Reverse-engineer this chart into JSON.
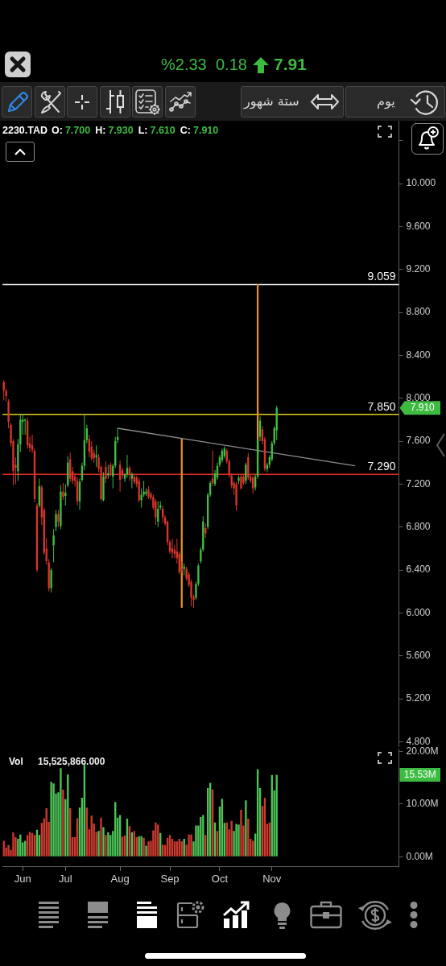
{
  "chart_data": [
    {
      "type": "candlestick",
      "title": "2230.TAD",
      "subtitle": "O: 7.700 H: 7.930 L: 7.610 C: 7.910",
      "categories": [
        null,
        null,
        null,
        null,
        null,
        null,
        null,
        null,
        null,
        null,
        null,
        null,
        null,
        null,
        null,
        null,
        null,
        null,
        null,
        null,
        null,
        null,
        null,
        null,
        null,
        null,
        null,
        null,
        null,
        null,
        null,
        null,
        null,
        null,
        null,
        null,
        null,
        null,
        null,
        null,
        null,
        null,
        null,
        null,
        null,
        null,
        null,
        null,
        null,
        null,
        null,
        null,
        null,
        null,
        null,
        null,
        null,
        null,
        null,
        null,
        null,
        null,
        null,
        null,
        null,
        null,
        null,
        null,
        null,
        null,
        null,
        null,
        null,
        null,
        null,
        null,
        null,
        null,
        null,
        null,
        null,
        null,
        null,
        null,
        null,
        null,
        null,
        null,
        null,
        null,
        null,
        null,
        null,
        null,
        null,
        null,
        null,
        null,
        null,
        null,
        null,
        null,
        null,
        null,
        null,
        null,
        null,
        null,
        null,
        null,
        null,
        null,
        null,
        null,
        null,
        null,
        null,
        null,
        null,
        null,
        null,
        null,
        null,
        null,
        null,
        null,
        null,
        null,
        null,
        null,
        null,
        null,
        null,
        null,
        null,
        null,
        null,
        null,
        null,
        null,
        null,
        null,
        null,
        null,
        null,
        null,
        null,
        null,
        null,
        null,
        null,
        null,
        null,
        null,
        null,
        null,
        null,
        null,
        null,
        null,
        null,
        null,
        null,
        null,
        null,
        null,
        null
      ],
      "ohlc": [
        [
          8.15,
          8.17,
          7.98,
          8.07
        ],
        [
          8.07,
          8.09,
          7.97,
          8.02
        ],
        [
          7.97,
          7.99,
          7.72,
          7.78
        ],
        [
          7.75,
          7.77,
          7.55,
          7.58
        ],
        [
          7.6,
          7.62,
          7.19,
          7.32
        ],
        [
          7.38,
          7.45,
          7.2,
          7.35
        ],
        [
          7.32,
          7.62,
          7.23,
          7.57
        ],
        [
          7.57,
          7.85,
          7.5,
          7.8
        ],
        [
          7.78,
          7.85,
          7.66,
          7.8
        ],
        [
          7.79,
          7.81,
          7.66,
          7.8
        ],
        [
          7.79,
          7.82,
          7.53,
          7.56
        ],
        [
          7.58,
          7.64,
          7.5,
          7.54
        ],
        [
          7.56,
          7.66,
          7.49,
          7.52
        ],
        [
          7.51,
          7.53,
          7.03,
          7.06
        ],
        [
          7.0,
          7.02,
          6.38,
          6.4
        ],
        [
          7.0,
          7.25,
          6.98,
          7.18
        ],
        [
          7.17,
          7.19,
          6.82,
          6.89
        ],
        [
          6.96,
          6.98,
          6.54,
          6.56
        ],
        [
          6.6,
          6.7,
          6.45,
          6.48
        ],
        [
          6.47,
          6.5,
          6.2,
          6.23
        ],
        [
          6.23,
          6.42,
          6.19,
          6.4
        ],
        [
          6.63,
          6.78,
          6.47,
          6.72
        ],
        [
          6.8,
          6.96,
          6.76,
          6.92
        ],
        [
          6.92,
          6.96,
          6.8,
          6.85
        ],
        [
          6.81,
          7.19,
          6.78,
          7.13
        ],
        [
          7.13,
          7.21,
          7.05,
          7.08
        ],
        [
          7.09,
          7.2,
          7.0,
          7.12
        ],
        [
          7.19,
          7.46,
          7.17,
          7.4
        ],
        [
          7.43,
          7.49,
          7.22,
          7.25
        ],
        [
          7.32,
          7.36,
          7.2,
          7.23
        ],
        [
          7.27,
          7.3,
          7.18,
          7.23
        ],
        [
          7.23,
          7.26,
          7.0,
          7.04
        ],
        [
          7.04,
          7.25,
          6.96,
          7.22
        ],
        [
          7.24,
          7.4,
          7.22,
          7.37
        ],
        [
          7.37,
          7.85,
          7.33,
          7.61
        ],
        [
          7.61,
          7.75,
          7.58,
          7.72
        ],
        [
          7.62,
          7.66,
          7.45,
          7.5
        ],
        [
          7.55,
          7.6,
          7.42,
          7.44
        ],
        [
          7.49,
          7.52,
          7.4,
          7.44
        ],
        [
          7.45,
          7.56,
          7.36,
          7.47
        ],
        [
          7.45,
          7.48,
          7.31,
          7.34
        ],
        [
          7.36,
          7.38,
          7.04,
          7.06
        ],
        [
          7.05,
          7.31,
          7.04,
          7.27
        ],
        [
          7.36,
          7.41,
          7.21,
          7.25
        ],
        [
          7.28,
          7.38,
          7.25,
          7.3
        ],
        [
          7.38,
          7.4,
          7.27,
          7.3
        ],
        [
          7.27,
          7.39,
          7.16,
          7.37
        ],
        [
          7.37,
          7.64,
          7.35,
          7.6
        ],
        [
          7.61,
          7.72,
          7.58,
          7.64
        ],
        [
          7.38,
          7.42,
          7.13,
          7.24
        ],
        [
          7.33,
          7.35,
          7.25,
          7.28
        ],
        [
          7.25,
          7.3,
          7.22,
          7.29
        ],
        [
          7.29,
          7.47,
          7.26,
          7.35
        ],
        [
          7.35,
          7.37,
          7.23,
          7.29
        ],
        [
          7.25,
          7.31,
          7.16,
          7.29
        ],
        [
          7.27,
          7.29,
          7.2,
          7.22
        ],
        [
          7.26,
          7.28,
          7.17,
          7.2
        ],
        [
          7.23,
          7.26,
          7.03,
          7.05
        ],
        [
          7.05,
          7.16,
          6.98,
          7.1
        ],
        [
          7.1,
          7.23,
          7.08,
          7.13
        ],
        [
          7.11,
          7.16,
          7.09,
          7.13
        ],
        [
          7.15,
          7.18,
          7.06,
          7.08
        ],
        [
          7.11,
          7.13,
          7.05,
          7.07
        ],
        [
          7.08,
          7.1,
          6.96,
          6.98
        ],
        [
          7.04,
          7.06,
          6.82,
          6.89
        ],
        [
          6.85,
          7.04,
          6.8,
          6.97
        ],
        [
          6.98,
          7.04,
          6.96,
          7.0
        ],
        [
          6.97,
          7.0,
          6.84,
          6.89
        ],
        [
          6.89,
          6.91,
          6.81,
          6.83
        ],
        [
          6.85,
          6.86,
          6.63,
          6.66
        ],
        [
          6.66,
          6.68,
          6.55,
          6.57
        ],
        [
          6.6,
          6.69,
          6.51,
          6.56
        ],
        [
          6.59,
          6.63,
          6.51,
          6.55
        ],
        [
          6.57,
          6.69,
          6.46,
          6.51
        ],
        [
          6.55,
          6.57,
          6.36,
          6.38
        ],
        [
          6.42,
          6.48,
          6.37,
          6.4
        ],
        [
          6.41,
          6.46,
          6.35,
          6.43
        ],
        [
          6.41,
          6.43,
          6.3,
          6.32
        ],
        [
          6.36,
          6.38,
          6.24,
          6.26
        ],
        [
          6.29,
          6.31,
          6.06,
          6.14
        ],
        [
          6.15,
          6.17,
          6.05,
          6.12
        ],
        [
          6.14,
          6.29,
          6.12,
          6.27
        ],
        [
          6.27,
          6.46,
          6.25,
          6.44
        ],
        [
          6.48,
          6.61,
          6.46,
          6.59
        ],
        [
          6.59,
          6.9,
          6.57,
          6.85
        ],
        [
          6.79,
          6.83,
          6.7,
          6.74
        ],
        [
          6.8,
          7.12,
          6.78,
          7.1
        ],
        [
          7.1,
          7.23,
          7.08,
          7.21
        ],
        [
          7.25,
          7.51,
          7.18,
          7.21
        ],
        [
          7.2,
          7.33,
          7.18,
          7.3
        ],
        [
          7.26,
          7.4,
          7.24,
          7.37
        ],
        [
          7.38,
          7.47,
          7.36,
          7.45
        ],
        [
          7.42,
          7.53,
          7.4,
          7.51
        ],
        [
          7.46,
          7.55,
          7.44,
          7.53
        ],
        [
          7.51,
          7.53,
          7.39,
          7.41
        ],
        [
          7.41,
          7.43,
          7.26,
          7.28
        ],
        [
          7.28,
          7.3,
          7.16,
          7.19
        ],
        [
          7.21,
          7.23,
          7.1,
          7.16
        ],
        [
          7.2,
          7.22,
          6.95,
          7.0
        ],
        [
          7.23,
          7.28,
          7.2,
          7.26
        ],
        [
          7.27,
          7.29,
          7.15,
          7.16
        ],
        [
          7.27,
          7.29,
          7.19,
          7.21
        ],
        [
          7.23,
          7.4,
          7.2,
          7.38
        ],
        [
          7.45,
          7.49,
          7.24,
          7.26
        ],
        [
          7.27,
          7.29,
          7.21,
          7.23
        ],
        [
          7.26,
          7.28,
          7.11,
          7.16
        ],
        [
          7.17,
          7.29,
          7.14,
          7.27
        ],
        [
          7.27,
          7.62,
          7.25,
          7.6
        ],
        [
          7.64,
          7.83,
          7.6,
          7.79
        ],
        [
          7.71,
          7.74,
          7.57,
          7.6
        ],
        [
          7.62,
          7.64,
          7.32,
          7.34
        ],
        [
          7.34,
          7.4,
          7.31,
          7.38
        ],
        [
          7.38,
          7.47,
          7.35,
          7.45
        ],
        [
          7.43,
          7.6,
          7.41,
          7.58
        ],
        [
          7.58,
          7.74,
          7.56,
          7.72
        ],
        [
          7.7,
          7.93,
          7.61,
          7.91
        ],
        null,
        null,
        null,
        null,
        null,
        null,
        null,
        null,
        null,
        null,
        null,
        null,
        null,
        null,
        null,
        null,
        null,
        null,
        null,
        null,
        null,
        null,
        null,
        null,
        null,
        null,
        null,
        null,
        null,
        null,
        null,
        null,
        null,
        null,
        null,
        null,
        null,
        null,
        null,
        null,
        null,
        null,
        null,
        null,
        null,
        null,
        null,
        null,
        null,
        null,
        null
      ],
      "colors": [
        "#d9352c",
        "#d9352c",
        "#d9352c",
        "#d9352c",
        "#d9352c",
        "#d9352c",
        "#3fbf45",
        "#3fbf45",
        "#3fbf45",
        "#3fbf45",
        "#d9352c",
        "#d9352c",
        "#d9352c",
        "#d9352c",
        "#d9352c",
        "#3fbf45",
        "#d9352c",
        "#d9352c",
        "#d9352c",
        "#d9352c",
        "#3fbf45",
        "#3fbf45",
        "#3fbf45",
        "#d9352c",
        "#3fbf45",
        "#d9352c",
        "#3fbf45",
        "#3fbf45",
        "#d9352c",
        "#d9352c",
        "#d9352c",
        "#d9352c",
        "#3fbf45",
        "#3fbf45",
        "#3fbf45",
        "#3fbf45",
        "#d9352c",
        "#d9352c",
        "#d9352c",
        "#3fbf45",
        "#d9352c",
        "#d9352c",
        "#3fbf45",
        "#d9352c",
        "#3fbf45",
        "#d9352c",
        "#3fbf45",
        "#3fbf45",
        "#3fbf45",
        "#d9352c",
        "#d9352c",
        "#3fbf45",
        "#3fbf45",
        "#d9352c",
        "#3fbf45",
        "#d9352c",
        "#d9352c",
        "#d9352c",
        "#3fbf45",
        "#3fbf45",
        "#3fbf45",
        "#d9352c",
        "#d9352c",
        "#d9352c",
        "#d9352c",
        "#3fbf45",
        "#3fbf45",
        "#d9352c",
        "#d9352c",
        "#d9352c",
        "#d9352c",
        "#d9352c",
        "#d9352c",
        "#d9352c",
        "#d9352c",
        "#d9352c",
        "#3fbf45",
        "#d9352c",
        "#d9352c",
        "#d9352c",
        "#d9352c",
        "#3fbf45",
        "#3fbf45",
        "#3fbf45",
        "#3fbf45",
        "#d9352c",
        "#3fbf45",
        "#3fbf45",
        "#d9352c",
        "#3fbf45",
        "#3fbf45",
        "#3fbf45",
        "#3fbf45",
        "#3fbf45",
        "#d9352c",
        "#d9352c",
        "#d9352c",
        "#d9352c",
        "#d9352c",
        "#3fbf45",
        "#d9352c",
        "#d9352c",
        "#3fbf45",
        "#d9352c",
        "#d9352c",
        "#d9352c",
        "#3fbf45",
        "#3fbf45",
        "#3fbf45",
        "#d9352c",
        "#d9352c",
        "#3fbf45",
        "#3fbf45",
        "#3fbf45",
        "#3fbf45",
        "#3fbf45",
        null,
        null,
        null,
        null,
        null,
        null,
        null,
        null,
        null,
        null,
        null,
        null,
        null,
        null,
        null,
        null,
        null,
        null,
        null,
        null,
        null,
        null,
        null,
        null,
        null,
        null,
        null,
        null,
        null,
        null,
        null,
        null,
        null,
        null,
        null,
        null,
        null,
        null,
        null,
        null,
        null,
        null,
        null,
        null,
        null,
        null,
        null,
        null,
        null,
        null,
        null
      ],
      "series": [
        {
          "type": "line",
          "color": "#8e8e8e",
          "values": [
            null,
            null,
            null,
            null,
            null,
            null,
            null,
            null,
            null,
            null,
            null,
            null,
            null,
            null,
            null,
            null,
            null,
            null,
            null,
            null,
            null,
            null,
            null,
            null,
            null,
            null,
            null,
            null,
            null,
            null,
            null,
            null,
            null,
            null,
            null,
            null,
            null,
            null,
            null,
            null,
            null,
            null,
            null,
            null,
            null,
            null,
            null,
            null,
            7.72,
            null,
            null,
            null,
            null,
            null,
            null,
            null,
            null,
            null,
            null,
            null,
            null,
            null,
            null,
            null,
            null,
            null,
            null,
            null,
            null,
            null,
            null,
            null,
            null,
            null,
            null,
            null,
            null,
            null,
            null,
            null,
            null,
            null,
            null,
            null,
            null,
            null,
            null,
            null,
            null,
            null,
            null,
            null,
            null,
            null,
            null,
            null,
            null,
            null,
            null,
            null,
            null,
            null,
            null,
            null,
            null,
            null,
            null,
            null,
            null,
            null,
            null,
            null,
            null,
            null,
            null,
            null,
            null,
            null,
            null,
            null,
            null,
            null,
            null,
            null,
            null,
            null,
            null,
            null,
            null,
            null,
            null,
            null,
            null,
            null,
            null,
            null,
            null,
            null,
            null,
            null,
            null,
            null,
            null,
            null,
            null,
            null,
            null,
            null,
            7.37,
            null,
            null,
            null,
            null,
            null,
            null,
            null,
            null,
            null,
            null,
            null,
            null,
            null,
            null,
            null,
            null,
            null,
            null
          ]
        },
        {
          "type": "bar",
          "color": "#e8921c",
          "base": [
            null,
            null,
            null,
            null,
            null,
            null,
            null,
            null,
            null,
            null,
            null,
            null,
            null,
            null,
            null,
            null,
            null,
            null,
            null,
            null,
            null,
            null,
            null,
            null,
            null,
            null,
            null,
            null,
            null,
            null,
            null,
            null,
            null,
            null,
            null,
            null,
            null,
            null,
            null,
            null,
            null,
            null,
            null,
            null,
            null,
            null,
            null,
            null,
            null,
            null,
            null,
            null,
            null,
            null,
            null,
            null,
            null,
            null,
            null,
            null,
            null,
            null,
            null,
            null,
            null,
            null,
            null,
            null,
            null,
            null,
            null,
            null,
            null,
            null,
            null,
            6.05,
            null,
            null,
            null,
            null,
            null,
            null,
            null,
            null,
            null,
            null,
            null,
            null,
            null,
            null,
            null,
            null,
            null,
            null,
            null,
            null,
            null,
            null,
            null,
            null,
            null,
            null,
            null,
            null,
            null,
            null,
            null,
            7.5,
            null,
            null,
            null,
            null,
            null,
            null,
            null,
            null,
            null,
            null,
            null,
            null,
            null,
            null,
            null,
            null,
            null,
            null,
            null,
            null,
            null,
            null,
            null,
            null,
            null,
            null,
            null,
            null,
            null,
            null,
            null,
            null,
            null,
            null,
            null,
            null,
            null,
            null,
            null,
            null,
            null,
            null,
            null,
            null,
            null,
            null,
            null,
            null,
            null,
            null,
            null,
            null,
            null,
            null,
            null,
            null,
            null,
            null,
            null
          ],
          "values": [
            null,
            null,
            null,
            null,
            null,
            null,
            null,
            null,
            null,
            null,
            null,
            null,
            null,
            null,
            null,
            null,
            null,
            null,
            null,
            null,
            null,
            null,
            null,
            null,
            null,
            null,
            null,
            null,
            null,
            null,
            null,
            null,
            null,
            null,
            null,
            null,
            null,
            null,
            null,
            null,
            null,
            null,
            null,
            null,
            null,
            null,
            null,
            null,
            null,
            null,
            null,
            null,
            null,
            null,
            null,
            null,
            null,
            null,
            null,
            null,
            null,
            null,
            null,
            null,
            null,
            null,
            null,
            null,
            null,
            null,
            null,
            null,
            null,
            null,
            null,
            1.57,
            null,
            null,
            null,
            null,
            null,
            null,
            null,
            null,
            null,
            null,
            null,
            null,
            null,
            null,
            null,
            null,
            null,
            null,
            null,
            null,
            null,
            null,
            null,
            null,
            null,
            null,
            null,
            null,
            null,
            null,
            null,
            1.56,
            null,
            null,
            null,
            null,
            null,
            null,
            null,
            null,
            null,
            null,
            null,
            null,
            null,
            null,
            null,
            null,
            null,
            null,
            null,
            null,
            null,
            null,
            null,
            null,
            null,
            null,
            null,
            null,
            null,
            null,
            null,
            null,
            null,
            null,
            null,
            null,
            null,
            null,
            null,
            null,
            null,
            null,
            null,
            null,
            null,
            null,
            null,
            null,
            null,
            null,
            null,
            null,
            null,
            null,
            null,
            null,
            null,
            null,
            null
          ]
        }
      ],
      "ylim": [
        4.75,
        10.585
      ],
      "yticks": [
        {
          "value": 4.8,
          "label": "4.800"
        },
        {
          "value": 5.2,
          "label": "5.200"
        },
        {
          "value": 5.6,
          "label": "5.600"
        },
        {
          "value": 6.0,
          "label": "6.000"
        },
        {
          "value": 6.4,
          "label": "6.400"
        },
        {
          "value": 6.8,
          "label": "6.800"
        },
        {
          "value": 7.2,
          "label": "7.200"
        },
        {
          "value": 7.6,
          "label": "7.600"
        },
        {
          "value": 8.0,
          "label": "8.000"
        },
        {
          "value": 8.4,
          "label": "8.400"
        },
        {
          "value": 8.8,
          "label": "8.800"
        },
        {
          "value": 9.2,
          "label": "9.200"
        },
        {
          "value": 9.6,
          "label": "9.600"
        },
        {
          "value": 10.0,
          "label": "10.000"
        },
        {
          "value": 10.4,
          "label": null
        }
      ],
      "ref_lines": [
        {
          "axis": "y",
          "value": 9.059,
          "label": "9.059",
          "color": "#f0f0f0"
        },
        {
          "axis": "y",
          "value": 7.85,
          "label": "7.850",
          "color": "#e2cf1e"
        },
        {
          "axis": "y",
          "value": 7.29,
          "label": "7.290",
          "color": "#e02a2a"
        }
      ],
      "annotations": [
        "%2.33",
        "0.18",
        "7.91",
        "ستة شهور",
        "يوم",
        "7.910"
      ]
    },
    {
      "type": "bar",
      "title": "Vol",
      "categories": [
        null,
        null,
        null,
        null,
        null,
        null,
        null,
        null,
        "Jun",
        null,
        null,
        null,
        null,
        null,
        null,
        null,
        null,
        null,
        null,
        null,
        null,
        null,
        null,
        null,
        null,
        null,
        "Jul",
        null,
        null,
        null,
        null,
        null,
        null,
        null,
        null,
        null,
        null,
        null,
        null,
        null,
        null,
        null,
        null,
        null,
        null,
        null,
        null,
        null,
        null,
        "Aug",
        null,
        null,
        null,
        null,
        null,
        null,
        null,
        null,
        null,
        null,
        null,
        null,
        null,
        null,
        null,
        null,
        null,
        null,
        null,
        null,
        "Sep",
        null,
        null,
        null,
        null,
        null,
        null,
        null,
        null,
        null,
        null,
        null,
        null,
        null,
        null,
        null,
        null,
        null,
        null,
        null,
        null,
        "Oct",
        null,
        null,
        null,
        null,
        null,
        null,
        null,
        null,
        null,
        null,
        null,
        null,
        null,
        null,
        null,
        null,
        null,
        null,
        null,
        null,
        null,
        "Nov",
        null,
        null,
        null,
        null,
        null,
        null,
        null,
        null,
        null,
        null,
        null,
        null,
        null,
        null,
        null,
        null,
        null,
        null,
        null,
        null,
        null,
        null,
        null,
        null,
        null,
        null,
        null,
        null,
        null,
        null,
        null,
        null,
        null,
        null,
        null,
        null,
        null,
        null,
        null,
        null,
        null,
        null,
        null,
        null,
        null,
        null,
        null,
        null,
        null,
        null,
        null,
        null,
        null
      ],
      "values": [
        3.0,
        1.7,
        2.2,
        1.3,
        4.6,
        3.7,
        3.4,
        4.2,
        2.7,
        3.0,
        4.1,
        4.7,
        4.5,
        4.1,
        5.1,
        4.1,
        6.4,
        7.3,
        9.2,
        6.6,
        14.2,
        13.9,
        12.0,
        12.2,
        16.8,
        12.7,
        10.9,
        15.6,
        9.2,
        3.7,
        3.7,
        7.3,
        9.3,
        11.2,
        17.5,
        9.3,
        5.2,
        7.8,
        6.3,
        4.7,
        4.9,
        7.4,
        5.6,
        4.1,
        4.6,
        4.1,
        4.9,
        10.4,
        7.4,
        7.9,
        3.8,
        4.0,
        7.2,
        5.8,
        4.6,
        4.9,
        3.7,
        3.9,
        3.9,
        3.6,
        2.1,
        2.9,
        3.0,
        5.0,
        6.5,
        6.1,
        4.5,
        2.3,
        2.2,
        3.6,
        4.1,
        3.4,
        2.9,
        2.9,
        3.4,
        2.9,
        3.4,
        2.3,
        4.2,
        4.2,
        2.9,
        5.9,
        5.9,
        7.5,
        7.9,
        4.1,
        13.0,
        14.0,
        12.8,
        6.5,
        4.9,
        9.5,
        11.0,
        6.4,
        6.5,
        5.2,
        6.8,
        4.9,
        6.2,
        6.1,
        8.9,
        5.9,
        10.7,
        7.2,
        3.4,
        3.0,
        4.4,
        16.6,
        13.0,
        9.6,
        11.2,
        6.2,
        6.5,
        15.5,
        12.6,
        15.53,
        null,
        null,
        null,
        null,
        null,
        null,
        null,
        null,
        null,
        null,
        null,
        null,
        null,
        null,
        null,
        null,
        null,
        null,
        null,
        null,
        null,
        null,
        null,
        null,
        null,
        null,
        null,
        null,
        null,
        null,
        null,
        null,
        null,
        null,
        null,
        null,
        null,
        null,
        null,
        null,
        null,
        null,
        null,
        null,
        null,
        null,
        null,
        null,
        null,
        null,
        null
      ],
      "colors": [
        "#cf3a30",
        "#cf3a30",
        "#cf3a30",
        "#cf3a30",
        "#cf3a30",
        "#cf3a30",
        "#4cc557",
        "#4cc557",
        "#4cc557",
        "#4cc557",
        "#cf3a30",
        "#cf3a30",
        "#cf3a30",
        "#cf3a30",
        "#4cc557",
        "#4cc557",
        "#cf3a30",
        "#cf3a30",
        "#cf3a30",
        "#cf3a30",
        "#4cc557",
        "#4cc557",
        "#4cc557",
        "#4cc557",
        "#4cc557",
        "#cf3a30",
        "#4cc557",
        "#4cc557",
        "#cf3a30",
        "#cf3a30",
        "#cf3a30",
        "#cf3a30",
        "#4cc557",
        "#4cc557",
        "#4cc557",
        "#cf3a30",
        "#cf3a30",
        "#cf3a30",
        "#cf3a30",
        "#cf3a30",
        "#4cc557",
        "#cf3a30",
        "#4cc557",
        "#cf3a30",
        "#4cc557",
        "#4cc557",
        "#4cc557",
        "#4cc557",
        "#4cc557",
        "#4cc557",
        "#cf3a30",
        "#cf3a30",
        "#4cc557",
        "#cf3a30",
        "#4cc557",
        "#cf3a30",
        "#cf3a30",
        "#4cc557",
        "#4cc557",
        "#cf3a30",
        "#4cc557",
        "#cf3a30",
        "#cf3a30",
        "#cf3a30",
        "#cf3a30",
        "#cf3a30",
        "#4cc557",
        "#cf3a30",
        "#cf3a30",
        "#cf3a30",
        "#cf3a30",
        "#cf3a30",
        "#cf3a30",
        "#cf3a30",
        "#cf3a30",
        "#cf3a30",
        "#4cc557",
        "#cf3a30",
        "#cf3a30",
        "#cf3a30",
        "#4cc557",
        "#4cc557",
        "#4cc557",
        "#4cc557",
        "#4cc557",
        "#cf3a30",
        "#4cc557",
        "#4cc557",
        "#cf3a30",
        "#4cc557",
        "#cf3a30",
        "#4cc557",
        "#4cc557",
        "#4cc557",
        "#cf3a30",
        "#cf3a30",
        "#cf3a30",
        "#4cc557",
        "#4cc557",
        "#4cc557",
        "#cf3a30",
        "#cf3a30",
        "#4cc557",
        "#cf3a30",
        "#cf3a30",
        "#cf3a30",
        "#4cc557",
        "#4cc557",
        "#4cc557",
        "#cf3a30",
        "#cf3a30",
        "#cf3a30",
        "#cf3a30",
        "#4cc557",
        "#4cc557",
        "#4cc557",
        null,
        null,
        null,
        null,
        null,
        null,
        null,
        null,
        null,
        null,
        null,
        null,
        null,
        null,
        null,
        null,
        null,
        null,
        null,
        null,
        null,
        null,
        null,
        null,
        null,
        null,
        null,
        null,
        null,
        null,
        null,
        null,
        null,
        null,
        null,
        null,
        null,
        null,
        null,
        null,
        null,
        null,
        null,
        null,
        null,
        null,
        null,
        null,
        null,
        null,
        null
      ],
      "ylim": [
        -1.8,
        20.5
      ],
      "yticks": [
        {
          "value": 0,
          "label": "0.00M"
        },
        {
          "value": 10,
          "label": "10.00M"
        },
        {
          "value": 20,
          "label": "20.00M"
        }
      ],
      "annotations": [
        "15,525,866.000",
        "15.53M"
      ]
    }
  ]
}
